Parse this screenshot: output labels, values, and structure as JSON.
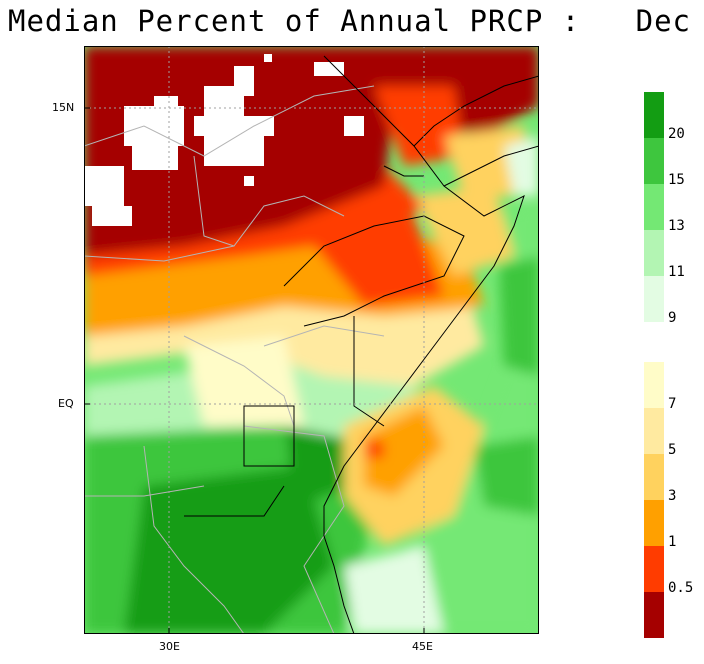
{
  "title": "Median Percent of Annual PRCP :   Dec",
  "axes": {
    "x_ticks": [
      "30E",
      "45E"
    ],
    "y_ticks": [
      "15N",
      "EQ"
    ]
  },
  "legend": {
    "upper": [
      {
        "label": "20",
        "color": "#139d13"
      },
      {
        "label": "15",
        "color": "#3ec63e"
      },
      {
        "label": "13",
        "color": "#74e874"
      },
      {
        "label": "11",
        "color": "#b3f5b3"
      },
      {
        "label": "9",
        "color": "#e3fce3"
      }
    ],
    "lower": [
      {
        "label": "7",
        "color": "#fffcc8"
      },
      {
        "label": "5",
        "color": "#ffeaa0"
      },
      {
        "label": "3",
        "color": "#ffd25e"
      },
      {
        "label": "1",
        "color": "#ffa000"
      },
      {
        "label": "0.5",
        "color": "#ff3c00"
      },
      {
        "label": "",
        "color": "#a50000"
      }
    ]
  },
  "colors": {
    "dark_red": "#a50000",
    "red": "#ff3c00",
    "orange": "#ffa000",
    "yellow": "#ffd25e",
    "light_yellow": "#ffeaa0",
    "cream": "#fffcc8",
    "pale_green": "#e3fce3",
    "light_green": "#b3f5b3",
    "green": "#74e874",
    "mid_green": "#3ec63e",
    "dark_green": "#139d13"
  }
}
